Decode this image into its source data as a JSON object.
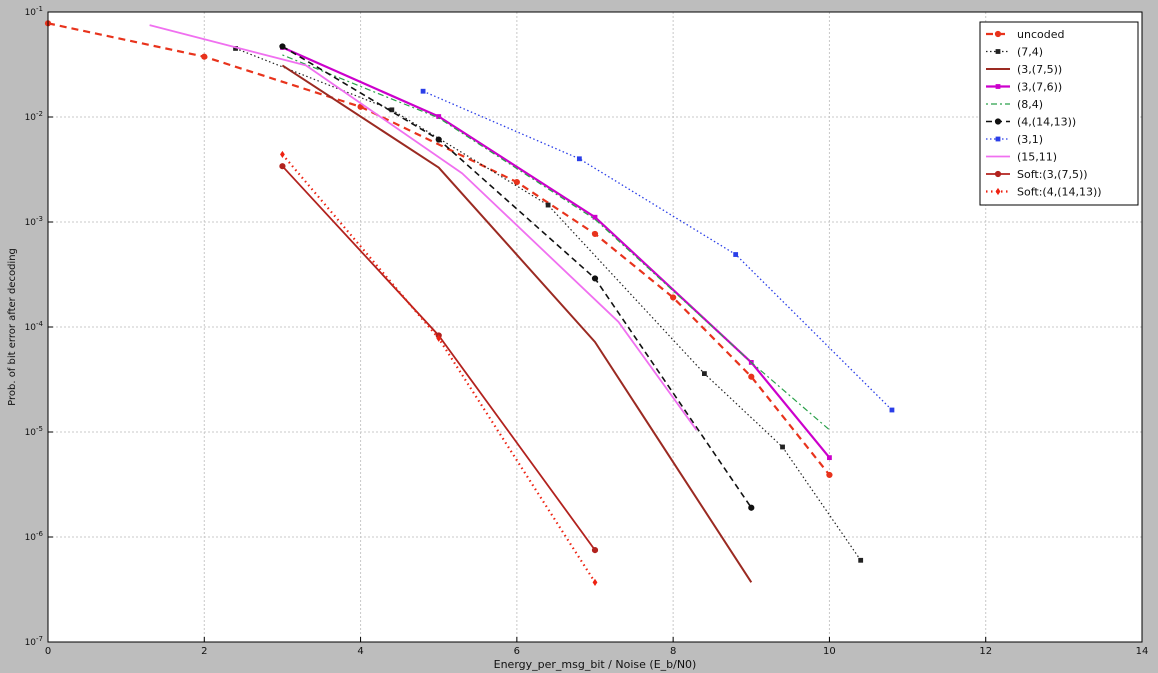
{
  "chart_data": {
    "type": "line",
    "xlabel": "Energy_per_msg_bit / Noise (E_b/N0)",
    "ylabel": "Prob. of bit error after decoding",
    "xlim": [
      0,
      14
    ],
    "ylim": [
      1e-07,
      0.1
    ],
    "yscale": "log",
    "grid": true,
    "legend_position": "top-right",
    "x_ticks": [
      0,
      2,
      4,
      6,
      8,
      10,
      12,
      14
    ],
    "y_ticks": [
      {
        "value": 1e-07,
        "base": "10",
        "exp": "-7"
      },
      {
        "value": 1e-06,
        "base": "10",
        "exp": "-6"
      },
      {
        "value": 1e-05,
        "base": "10",
        "exp": "-5"
      },
      {
        "value": 0.0001,
        "base": "10",
        "exp": "-4"
      },
      {
        "value": 0.001,
        "base": "10",
        "exp": "-3"
      },
      {
        "value": 0.01,
        "base": "10",
        "exp": "-2"
      },
      {
        "value": 0.1,
        "base": "10",
        "exp": "-1"
      }
    ],
    "series": [
      {
        "name": "uncoded",
        "color": "#e8331c",
        "dash": "7,5",
        "width": 2.2,
        "marker": "circle",
        "points": [
          [
            0,
            0.078
          ],
          [
            2,
            0.0375
          ],
          [
            4,
            0.0125
          ],
          [
            6,
            0.0024
          ],
          [
            7,
            0.00077
          ],
          [
            8,
            0.000191
          ],
          [
            9,
            3.36e-05
          ],
          [
            10,
            3.9e-06
          ]
        ]
      },
      {
        "name": "(7,4)",
        "color": "#222222",
        "dash": "1.5,2.5",
        "width": 1.2,
        "marker": "square",
        "points": [
          [
            2.4,
            0.045
          ],
          [
            4.4,
            0.0117
          ],
          [
            6.4,
            0.00145
          ],
          [
            8.4,
            3.6e-05
          ],
          [
            9.4,
            7.2e-06
          ],
          [
            10.4,
            6e-07
          ]
        ]
      },
      {
        "name": "(3,(7,5))",
        "color": "#9b2a22",
        "dash": "",
        "width": 2,
        "marker": "none",
        "points": [
          [
            3,
            0.031
          ],
          [
            5,
            0.0033
          ],
          [
            7,
            7.2e-05
          ],
          [
            9,
            3.7e-07
          ]
        ]
      },
      {
        "name": "(3,(7,6))",
        "color": "#cc00cc",
        "dash": "",
        "width": 2.2,
        "marker": "square",
        "points": [
          [
            3,
            0.046
          ],
          [
            5,
            0.0101
          ],
          [
            7,
            0.00111
          ],
          [
            9,
            4.6e-05
          ],
          [
            10,
            5.7e-06
          ]
        ]
      },
      {
        "name": "(8,4)",
        "color": "#2aa04a",
        "dash": "2,3,6,3",
        "width": 1.2,
        "marker": "none",
        "points": [
          [
            3,
            0.039
          ],
          [
            5,
            0.0098
          ],
          [
            7,
            0.00106
          ],
          [
            9,
            4.6e-05
          ],
          [
            10,
            1.05e-05
          ]
        ]
      },
      {
        "name": "(4,(14,13))",
        "color": "#111111",
        "dash": "6,4",
        "width": 1.6,
        "marker": "circle",
        "points": [
          [
            3,
            0.047
          ],
          [
            5,
            0.0061
          ],
          [
            7,
            0.00029
          ],
          [
            9,
            1.9e-06
          ]
        ]
      },
      {
        "name": "(3,1)",
        "color": "#2a3ee8",
        "dash": "1.5,2.5",
        "width": 1.3,
        "marker": "square",
        "points": [
          [
            4.8,
            0.0176
          ],
          [
            6.8,
            0.004
          ],
          [
            8.8,
            0.00049
          ],
          [
            10.8,
            1.62e-05
          ]
        ]
      },
      {
        "name": "(15,11)",
        "color": "#f070f0",
        "dash": "",
        "width": 1.8,
        "marker": "none",
        "points": [
          [
            1.3,
            0.075
          ],
          [
            3.3,
            0.031
          ],
          [
            5.3,
            0.0029
          ],
          [
            7.3,
            0.000112
          ],
          [
            8.3,
            1.04e-05
          ]
        ]
      },
      {
        "name": "Soft:(3,(7,5))",
        "color": "#b2221e",
        "dash": "",
        "width": 1.8,
        "marker": "circle",
        "points": [
          [
            3,
            0.0034
          ],
          [
            5,
            8.3e-05
          ],
          [
            7,
            7.5e-07
          ]
        ]
      },
      {
        "name": "Soft:(4,(14,13))",
        "color": "#ee2211",
        "dash": "1.5,3.5",
        "width": 2.2,
        "marker": "diamond",
        "points": [
          [
            3,
            0.0044
          ],
          [
            5,
            7.8e-05
          ],
          [
            7,
            3.7e-07
          ]
        ]
      }
    ]
  }
}
